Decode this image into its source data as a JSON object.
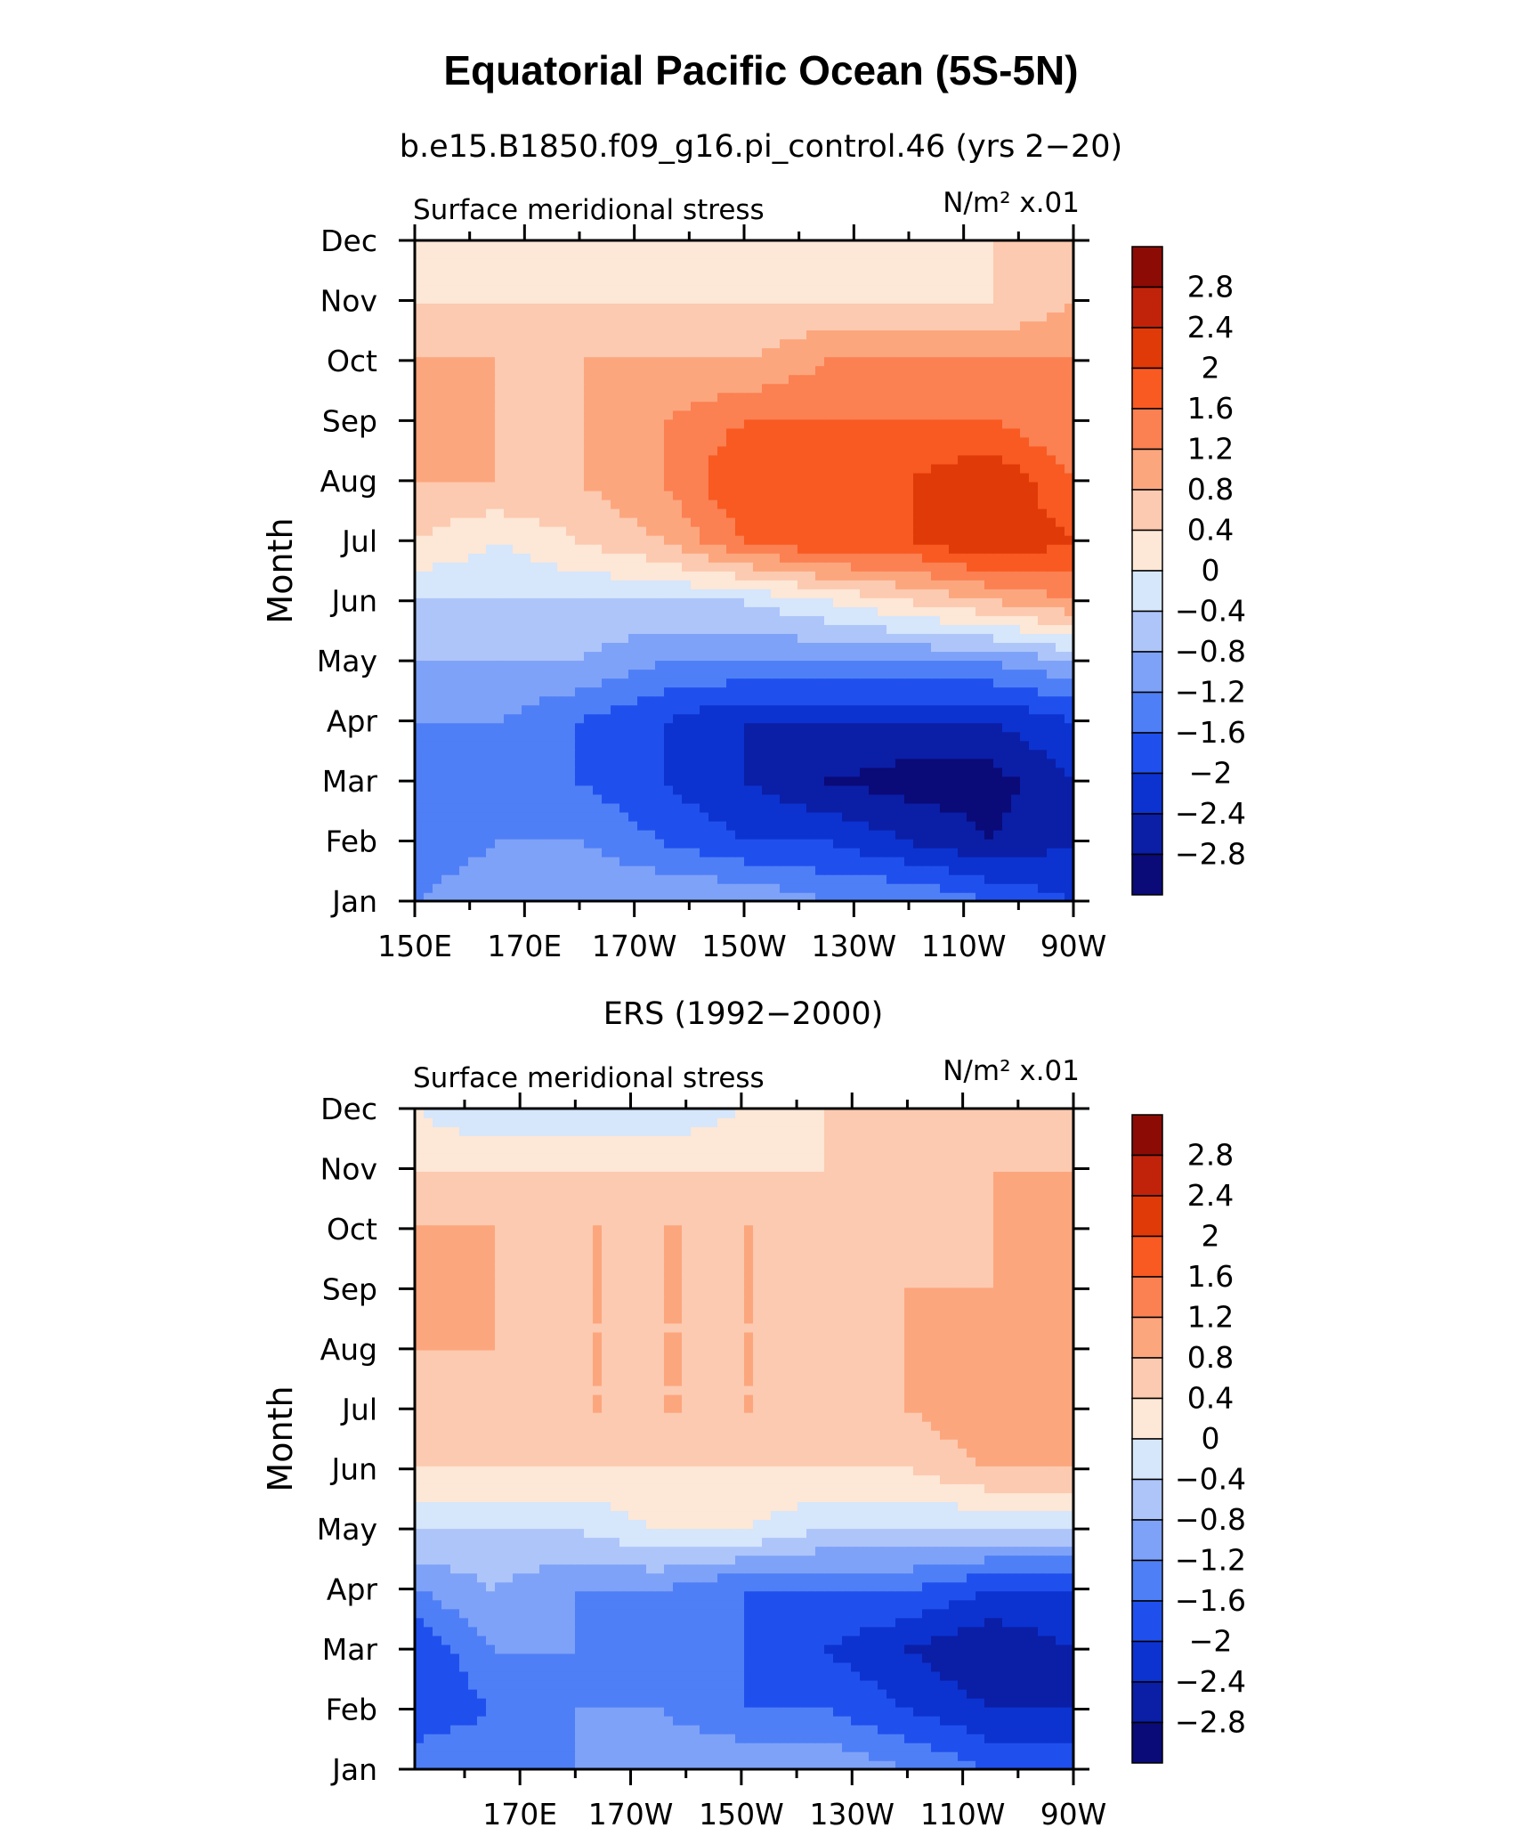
{
  "figure": {
    "title": "Equatorial Pacific Ocean (5S-5N)"
  },
  "colorbar": {
    "colors": [
      "#0a0a78",
      "#0b1ea6",
      "#0c33d0",
      "#1f50ee",
      "#4f7ff6",
      "#7ea2f8",
      "#aec5fa",
      "#d6e6fb",
      "#fde7d6",
      "#fccab0",
      "#fca67e",
      "#fb8052",
      "#f85a22",
      "#e03a09",
      "#c1230a",
      "#8c0b05"
    ],
    "labels": [
      "2.8",
      "2.4",
      "2",
      "1.6",
      "1.2",
      "0.8",
      "0.4",
      "0",
      "−0.4",
      "−0.8",
      "−1.2",
      "−1.6",
      "−2",
      "−2.4",
      "−2.8"
    ]
  },
  "chart_data": [
    {
      "type": "heatmap",
      "subtitle": "b.e15.B1850.f09_g16.pi_control.46 (yrs 2−20)",
      "variable": "Surface meridional stress",
      "units": "N/m² x.01",
      "ylabel": "Month",
      "xlabel": "",
      "y_categories": [
        "Jan",
        "Feb",
        "Mar",
        "Apr",
        "May",
        "Jun",
        "Jul",
        "Aug",
        "Sep",
        "Oct",
        "Nov",
        "Dec"
      ],
      "x_tick_labels": [
        "150E",
        "170E",
        "170W",
        "150W",
        "130W",
        "110W",
        "90W"
      ],
      "x_tick_values": [
        150,
        170,
        190,
        210,
        230,
        250,
        270
      ],
      "xlim": [
        150,
        270
      ],
      "ylim": [
        1,
        12
      ],
      "levels": [
        -2.8,
        -2.4,
        -2,
        -1.6,
        -1.2,
        -0.8,
        -0.4,
        0,
        0.4,
        0.8,
        1.2,
        1.6,
        2,
        2.4,
        2.8
      ],
      "x": [
        150,
        165,
        180,
        195,
        210,
        225,
        240,
        255,
        270
      ],
      "values": [
        [
          -1.2,
          -0.8,
          -0.8,
          -0.8,
          -0.8,
          -1.2,
          -1.2,
          -1.6,
          -2.0
        ],
        [
          -1.6,
          -1.2,
          -1.2,
          -1.6,
          -2.0,
          -2.0,
          -2.4,
          -2.8,
          -2.4
        ],
        [
          -1.6,
          -1.2,
          -1.6,
          -2.0,
          -2.4,
          -2.8,
          -3.0,
          -3.0,
          -2.4
        ],
        [
          -1.2,
          -1.2,
          -1.6,
          -2.0,
          -2.4,
          -2.4,
          -2.4,
          -2.4,
          -2.0
        ],
        [
          -0.8,
          -0.8,
          -0.8,
          -1.2,
          -1.2,
          -1.2,
          -1.2,
          -1.2,
          -0.8
        ],
        [
          -0.4,
          -0.4,
          -0.4,
          -0.4,
          -0.4,
          0.0,
          0.4,
          0.8,
          1.2
        ],
        [
          0.4,
          0.0,
          0.4,
          0.8,
          1.6,
          2.0,
          2.0,
          2.4,
          2.0
        ],
        [
          0.8,
          0.8,
          0.8,
          1.2,
          2.0,
          2.0,
          2.0,
          2.4,
          1.6
        ],
        [
          1.2,
          0.8,
          0.8,
          1.2,
          1.6,
          1.6,
          1.6,
          1.6,
          1.2
        ],
        [
          0.8,
          0.8,
          0.8,
          0.8,
          0.8,
          1.2,
          1.2,
          1.2,
          1.2
        ],
        [
          0.4,
          0.4,
          0.4,
          0.4,
          0.4,
          0.4,
          0.4,
          0.4,
          0.8
        ],
        [
          0.4,
          0.4,
          0.4,
          0.4,
          0.4,
          0.0,
          0.0,
          0.4,
          0.4
        ]
      ]
    },
    {
      "type": "heatmap",
      "subtitle": "ERS (1992−2000)",
      "variable": "Surface meridional stress",
      "units": "N/m² x.01",
      "ylabel": "Month",
      "xlabel": "",
      "y_categories": [
        "Jan",
        "Feb",
        "Mar",
        "Apr",
        "May",
        "Jun",
        "Jul",
        "Aug",
        "Sep",
        "Oct",
        "Nov",
        "Dec"
      ],
      "x_tick_labels": [
        "170E",
        "170W",
        "150W",
        "130W",
        "110W",
        "90W"
      ],
      "x_tick_values": [
        170,
        190,
        210,
        230,
        250,
        270
      ],
      "xlim": [
        151,
        270
      ],
      "ylim": [
        1,
        12
      ],
      "levels": [
        -2.8,
        -2.4,
        -2,
        -1.6,
        -1.2,
        -0.8,
        -0.4,
        0,
        0.4,
        0.8,
        1.2,
        1.6,
        2,
        2.4,
        2.8
      ],
      "x": [
        151,
        165,
        180,
        195,
        210,
        225,
        240,
        255,
        270
      ],
      "values": [
        [
          -1.2,
          -1.2,
          -1.2,
          -0.8,
          -0.8,
          -0.8,
          -1.2,
          -1.6,
          -1.6
        ],
        [
          -2.0,
          -1.6,
          -1.2,
          -1.2,
          -1.6,
          -1.6,
          -2.0,
          -2.4,
          -2.4
        ],
        [
          -2.0,
          -1.2,
          -1.2,
          -1.2,
          -1.6,
          -2.0,
          -2.4,
          -2.8,
          -2.4
        ],
        [
          -1.2,
          -0.8,
          -1.2,
          -1.2,
          -1.6,
          -1.6,
          -1.6,
          -2.0,
          -2.0
        ],
        [
          -0.4,
          -0.4,
          -0.4,
          0.0,
          0.0,
          -0.4,
          -0.4,
          -0.4,
          -0.4
        ],
        [
          0.4,
          0.4,
          0.4,
          0.4,
          0.4,
          0.4,
          0.4,
          0.8,
          0.8
        ],
        [
          0.8,
          0.8,
          0.8,
          0.8,
          0.8,
          0.8,
          0.8,
          1.2,
          1.2
        ],
        [
          0.8,
          0.8,
          0.8,
          0.8,
          0.8,
          0.8,
          0.8,
          1.2,
          1.2
        ],
        [
          1.2,
          0.8,
          0.8,
          0.8,
          0.8,
          0.8,
          0.8,
          0.8,
          1.2
        ],
        [
          0.8,
          0.8,
          0.8,
          0.8,
          0.8,
          0.8,
          0.8,
          0.8,
          1.2
        ],
        [
          0.4,
          0.4,
          0.4,
          0.4,
          0.4,
          0.4,
          0.8,
          0.8,
          0.8
        ],
        [
          0.0,
          -0.4,
          -0.4,
          -0.4,
          0.0,
          0.4,
          0.4,
          0.4,
          0.4
        ]
      ]
    }
  ]
}
